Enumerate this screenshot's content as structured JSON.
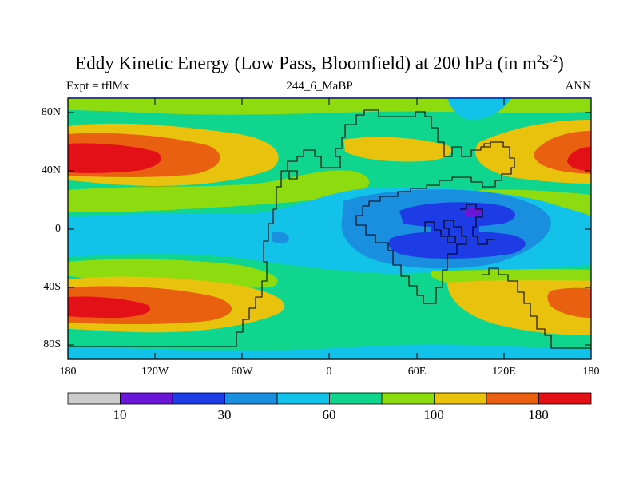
{
  "title": {
    "main": "Eddy Kinetic Energy (Low Pass, Bloomfield) at 200 hPa (in m",
    "sup1": "2",
    "mid": "s",
    "sup2": "-2",
    "end": ")"
  },
  "subtitle_left": "Expt = tflMx",
  "subtitle_center": "244_6_MaBP",
  "subtitle_right": "ANN",
  "axes": {
    "lat_ticks": [
      "80N",
      "40N",
      "0",
      "40S",
      "80S"
    ],
    "lon_ticks": [
      "180",
      "120W",
      "60W",
      "0",
      "60E",
      "120E",
      "180"
    ]
  },
  "colorbar": {
    "colors": [
      "#cccccc",
      "#6a16d6",
      "#1e3ce6",
      "#1a8fe0",
      "#12c2e8",
      "#0fd58e",
      "#8edc10",
      "#e8c20c",
      "#e86010",
      "#e41018"
    ],
    "labels": [
      "10",
      "30",
      "60",
      "100",
      "180"
    ]
  },
  "colors": {
    "frame": "#000000",
    "coast": "#000000"
  }
}
